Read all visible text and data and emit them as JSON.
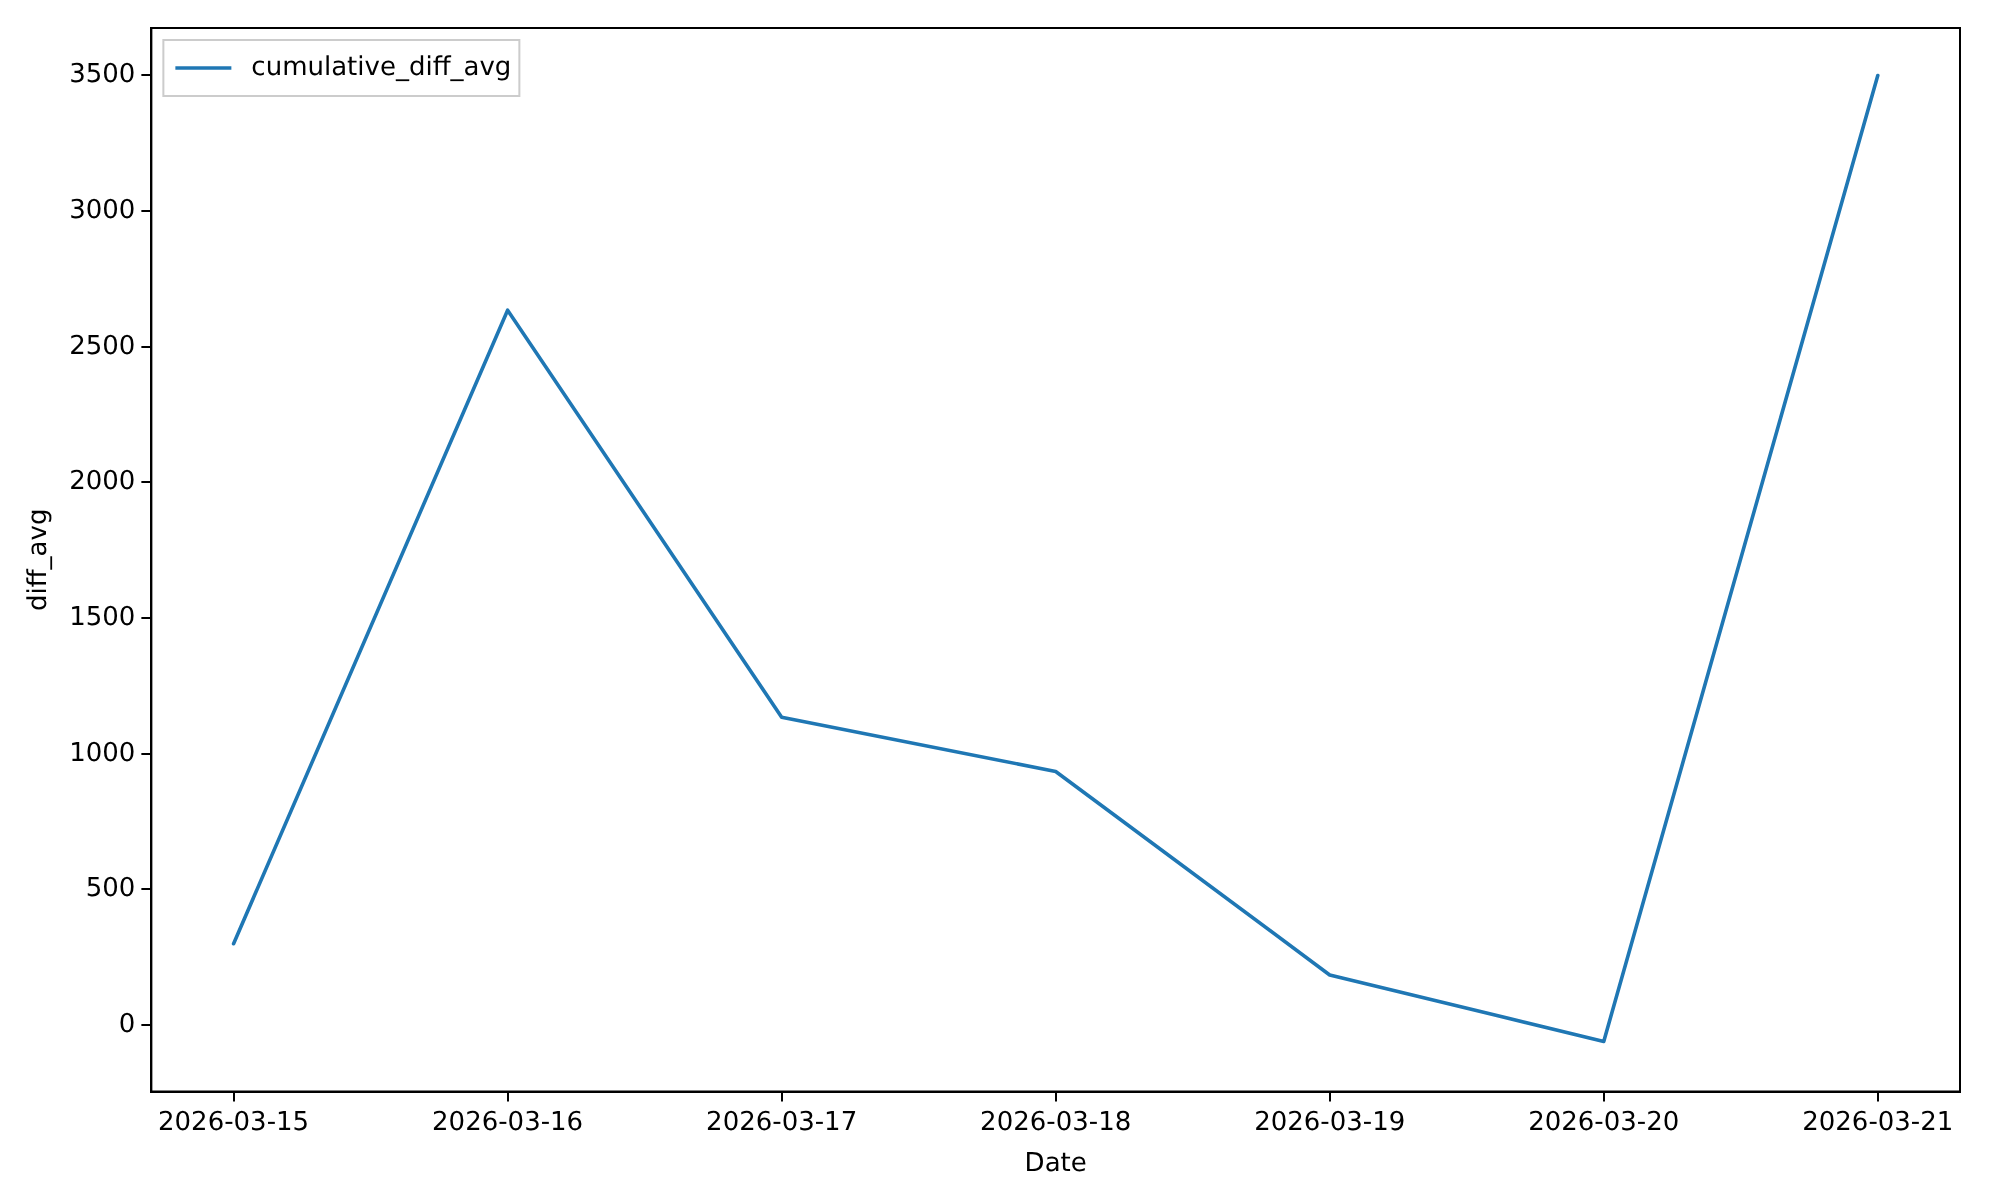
{
  "chart_data": {
    "type": "line",
    "xlabel": "Date",
    "ylabel": "diff_avg",
    "x": [
      "2026-03-15",
      "2026-03-16",
      "2026-03-17",
      "2026-03-18",
      "2026-03-19",
      "2026-03-20",
      "2026-03-21"
    ],
    "series": [
      {
        "name": "cumulative_diff_avg",
        "color": "#1f77b4",
        "values": [
          300,
          2635,
          1135,
          935,
          185,
          -60,
          3500
        ]
      }
    ],
    "xlim": [
      "2026-03-14T16:48",
      "2026-03-21T07:12"
    ],
    "xticks": [
      "2026-03-15",
      "2026-03-16",
      "2026-03-17",
      "2026-03-18",
      "2026-03-19",
      "2026-03-20",
      "2026-03-21"
    ],
    "ylim": [
      -245,
      3675
    ],
    "yticks": [
      0,
      500,
      1000,
      1500,
      2000,
      2500,
      3000,
      3500
    ],
    "grid": false,
    "legend": "top left",
    "marker": "none",
    "line_style": "solid"
  }
}
